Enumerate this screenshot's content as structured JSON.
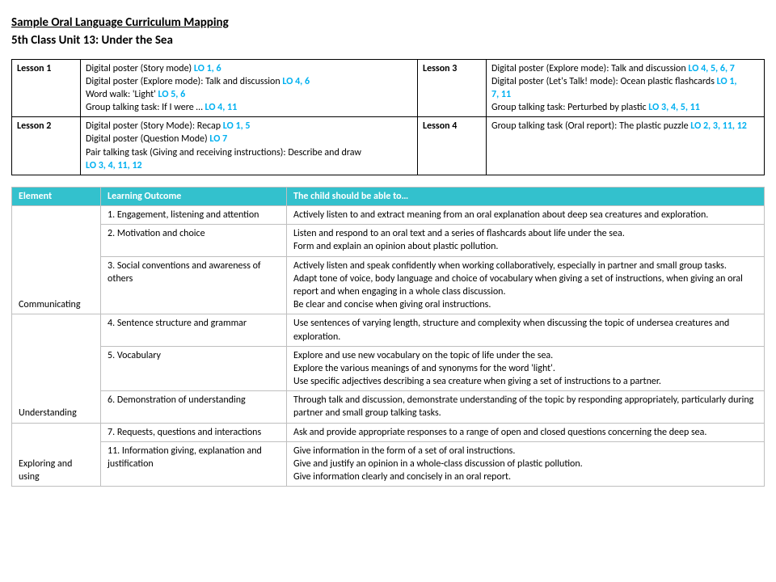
{
  "title": "Sample Oral Language Curriculum Mapping",
  "subtitle": "5th Class Unit 13: Under the Sea",
  "lessons": {
    "l1": {
      "label": "Lesson 1",
      "lines": [
        {
          "pre": "Digital poster (Story mode) ",
          "lo": "LO 1, 6"
        },
        {
          "pre": "Digital poster (Explore mode): Talk and discussion ",
          "lo": "LO 4, 6"
        },
        {
          "pre": "Word walk: 'Light' ",
          "lo": "LO 5, 6"
        },
        {
          "pre": "Group talking task: If I were … ",
          "lo": "LO 4, 11"
        }
      ]
    },
    "l2": {
      "label": "Lesson 2",
      "lines": [
        {
          "pre": "Digital poster (Story Mode): Recap ",
          "lo": "LO 1, 5"
        },
        {
          "pre": "Digital poster (Question Mode) ",
          "lo": "LO 7"
        },
        {
          "pre": "Pair talking task (Giving and receiving instructions): Describe and draw",
          "lo": ""
        },
        {
          "pre": "",
          "lo": "LO 3, 4, 11, 12"
        }
      ]
    },
    "l3": {
      "label": "Lesson 3",
      "lines": [
        {
          "pre": "Digital poster (Explore mode): Talk and discussion ",
          "lo": "LO 4, 5, 6, 7"
        },
        {
          "pre": "Digital poster (Let's Talk! mode): Ocean plastic flashcards ",
          "lo": "LO 1,"
        },
        {
          "pre": "",
          "lo": "7, 11"
        },
        {
          "pre": "Group talking task: Perturbed by plastic ",
          "lo": "LO 3, 4, 5, 11"
        }
      ]
    },
    "l4": {
      "label": "Lesson 4",
      "lines": [
        {
          "pre": "Group talking task (Oral report): The plastic puzzle ",
          "lo": "LO 2, 3, 11, 12"
        }
      ]
    }
  },
  "outcomes": {
    "headers": {
      "element": "Element",
      "lo": "Learning Outcome",
      "desc": "The child should be able to…"
    },
    "rows": [
      {
        "elem": "",
        "lo": "1. Engagement, listening and attention",
        "desc": "Actively listen to and extract meaning from an oral explanation about deep sea creatures and exploration."
      },
      {
        "elem": "",
        "lo": "2. Motivation and choice",
        "desc": "Listen and respond to an oral text and a series of flashcards about life under the sea.\nForm and explain an opinion about plastic pollution."
      },
      {
        "elem": "Communicating",
        "lo": "3. Social conventions and awareness of others",
        "desc": "Actively listen and speak confidently when working collaboratively, especially in partner and small group tasks.\nAdapt tone of voice, body language and choice of vocabulary when giving a set of instructions, when giving an oral report and when engaging in a whole class discussion.\nBe clear and concise when giving oral instructions."
      },
      {
        "elem": "",
        "lo": "4. Sentence structure and grammar",
        "desc": "Use sentences of varying length, structure and complexity when discussing the topic of undersea creatures and exploration."
      },
      {
        "elem": "",
        "lo": "5. Vocabulary",
        "desc": "Explore and use new vocabulary on the topic of life under the sea.\nExplore the various meanings of and synonyms for the word 'light'.\nUse specific adjectives describing a sea creature when giving a set of instructions to a partner."
      },
      {
        "elem": "Understanding",
        "lo": "6. Demonstration of understanding",
        "desc": "Through talk and discussion, demonstrate understanding of the topic by responding appropriately, particularly during partner and small group talking tasks."
      },
      {
        "elem": "",
        "lo": "7. Requests, questions and interactions",
        "desc": "Ask and provide appropriate responses to a range of open and closed questions concerning the deep sea."
      },
      {
        "elem": "Exploring and using",
        "lo": "11. Information giving, explanation and justification",
        "desc": "Give information in the form of a set of oral instructions.\nGive and justify an opinion in a whole-class discussion of plastic pollution.\nGive information clearly and concisely in an oral report."
      }
    ],
    "rowspans": [
      3,
      3,
      2
    ]
  },
  "colors": {
    "accent": "#33c1cd",
    "lo": "#00b0f0"
  }
}
